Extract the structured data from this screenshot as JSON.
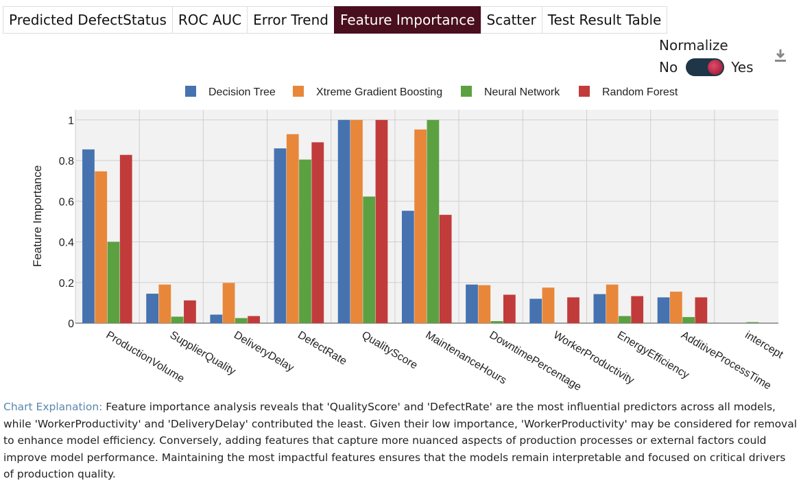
{
  "tabs": [
    {
      "label": "Predicted DefectStatus",
      "active": false
    },
    {
      "label": "ROC AUC",
      "active": false
    },
    {
      "label": "Error Trend",
      "active": false
    },
    {
      "label": "Feature Importance",
      "active": true
    },
    {
      "label": "Scatter",
      "active": false
    },
    {
      "label": "Test Result Table",
      "active": false
    }
  ],
  "normalize": {
    "title": "Normalize",
    "no_label": "No",
    "yes_label": "Yes",
    "value": true
  },
  "icons": {
    "download": "download-icon"
  },
  "colors": {
    "active_tab": "#4a0f1e",
    "toggle_track": "#1f3548",
    "toggle_knob": "#c8284a",
    "explanation_label": "#5a87ad"
  },
  "chart_data": {
    "type": "bar",
    "ylabel": "Feature Importance",
    "xlabel": "",
    "ylim": [
      0,
      1.05
    ],
    "yticks": [
      0,
      0.2,
      0.4,
      0.6,
      0.8,
      1
    ],
    "ytick_labels": [
      "0",
      "0.2",
      "0.4",
      "0.6",
      "0.8",
      "1"
    ],
    "grid": true,
    "legend_position": "top",
    "categories": [
      "ProductionVolume",
      "SupplierQuality",
      "DeliveryDelay",
      "DefectRate",
      "QualityScore",
      "MaintenanceHours",
      "DowntimePercentage",
      "WorkerProductivity",
      "EnergyEfficiency",
      "AdditiveProcessTime",
      "intercept"
    ],
    "series": [
      {
        "name": "Decision Tree",
        "color": "#4672b0",
        "values": [
          0.855,
          0.145,
          0.042,
          0.86,
          1.0,
          0.553,
          0.19,
          0.12,
          0.143,
          0.127,
          0
        ]
      },
      {
        "name": "Xtreme Gradient Boosting",
        "color": "#e8873a",
        "values": [
          0.747,
          0.19,
          0.198,
          0.93,
          1.0,
          0.953,
          0.187,
          0.175,
          0.19,
          0.155,
          0
        ]
      },
      {
        "name": "Neural Network",
        "color": "#5ba142",
        "values": [
          0.4,
          0.032,
          0.025,
          0.805,
          0.623,
          1.0,
          0.01,
          0,
          0.035,
          0.03,
          0.005
        ]
      },
      {
        "name": "Random Forest",
        "color": "#c23b3b",
        "values": [
          0.828,
          0.112,
          0.035,
          0.89,
          1.0,
          0.533,
          0.14,
          0.127,
          0.133,
          0.127,
          0
        ]
      }
    ]
  },
  "explanation": {
    "label": "Chart Explanation:",
    "text": " Feature importance analysis reveals that 'QualityScore' and 'DefectRate' are the most influential predictors across all models, while 'WorkerProductivity' and 'DeliveryDelay' contributed the least. Given their low importance, 'WorkerProductivity' may be considered for removal to enhance model efficiency. Conversely, adding features that capture more nuanced aspects of production processes or external factors could improve model performance. Maintaining the most impactful features ensures that the models remain interpretable and focused on critical drivers of production quality."
  }
}
